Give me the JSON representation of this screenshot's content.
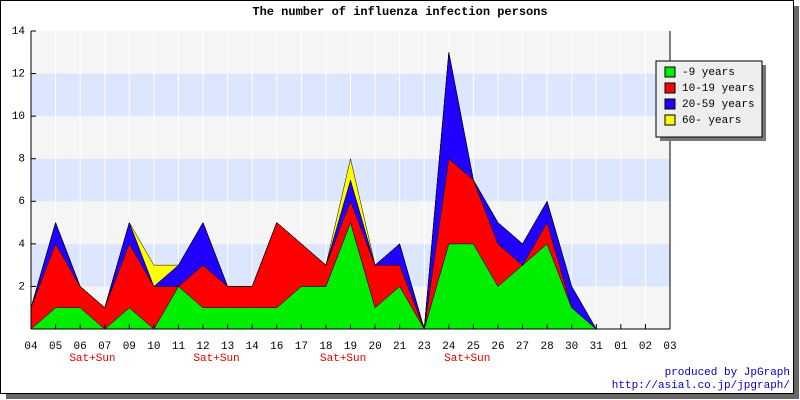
{
  "chart_data": {
    "type": "stacked_area",
    "title": "The number of influenza infection persons",
    "categories": [
      "04",
      "05",
      "06",
      "07",
      "09",
      "10",
      "11",
      "12",
      "13",
      "14",
      "16",
      "17",
      "18",
      "19",
      "20",
      "21",
      "23",
      "24",
      "25",
      "26",
      "27",
      "28",
      "30",
      "31",
      "01",
      "02",
      "03"
    ],
    "series": [
      {
        "name": "-9 years",
        "color": "#00ee00",
        "values": [
          0,
          1,
          1,
          0,
          1,
          0,
          2,
          1,
          1,
          1,
          1,
          2,
          2,
          5,
          1,
          2,
          0,
          4,
          4,
          2,
          3,
          4,
          1,
          0,
          null,
          null,
          null
        ]
      },
      {
        "name": "10-19 years",
        "color": "#ff0000",
        "values": [
          1,
          3,
          1,
          1,
          3,
          2,
          0,
          2,
          1,
          1,
          4,
          2,
          1,
          1,
          2,
          1,
          0,
          4,
          3,
          2,
          0,
          1,
          0,
          0,
          null,
          null,
          null
        ]
      },
      {
        "name": "20-59 years",
        "color": "#2200ff",
        "values": [
          0,
          1,
          0,
          0,
          1,
          0,
          1,
          2,
          0,
          0,
          0,
          0,
          0,
          1,
          0,
          1,
          0,
          5,
          0,
          1,
          1,
          1,
          1,
          0,
          null,
          null,
          null
        ]
      },
      {
        "name": "60- years",
        "color": "#ffff00",
        "values": [
          0,
          0,
          0,
          0,
          0,
          1,
          0,
          0,
          0,
          0,
          0,
          0,
          0,
          1,
          0,
          0,
          0,
          0,
          0,
          0,
          0,
          0,
          0,
          0,
          null,
          null,
          null
        ]
      }
    ],
    "annotations": [
      "Sat+Sun",
      "Sat+Sun",
      "Sat+Sun",
      "Sat+Sun"
    ],
    "annotation_color": "#dd0000",
    "ylim": [
      0,
      14
    ],
    "yticks": [
      2,
      4,
      6,
      8,
      10,
      12,
      14
    ],
    "grid": true,
    "band_colors": [
      "#f5f5f5",
      "#dde6ff"
    ],
    "legend": "top-right",
    "footer": [
      "produced by JpGraph",
      "http://asial.co.jp/jpgraph/"
    ],
    "footer_color": "#0000cc"
  }
}
